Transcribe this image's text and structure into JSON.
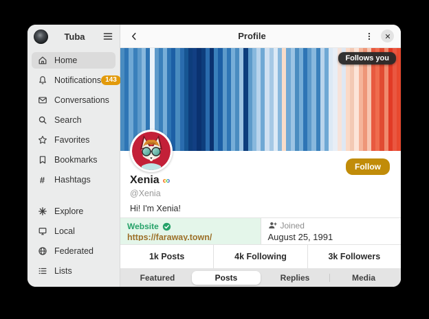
{
  "sidebar": {
    "title": "Tuba",
    "items": [
      {
        "label": "Home",
        "icon": "home-icon",
        "selected": true
      },
      {
        "label": "Notifications",
        "icon": "bell-icon",
        "badge": "143"
      },
      {
        "label": "Conversations",
        "icon": "envelope-icon"
      },
      {
        "label": "Search",
        "icon": "search-icon"
      },
      {
        "label": "Favorites",
        "icon": "star-icon"
      },
      {
        "label": "Bookmarks",
        "icon": "bookmark-icon"
      },
      {
        "label": "Hashtags",
        "icon": "hash-icon"
      },
      {
        "label": "Explore",
        "icon": "explore-icon"
      },
      {
        "label": "Local",
        "icon": "monitor-icon"
      },
      {
        "label": "Federated",
        "icon": "globe-icon"
      },
      {
        "label": "Lists",
        "icon": "list-icon"
      }
    ]
  },
  "header": {
    "title": "Profile"
  },
  "profile": {
    "follows_you_label": "Follows you",
    "follow_button_label": "Follow",
    "display_name": "Xenia",
    "name_emoji": "∞",
    "handle": "@Xenia",
    "bio": "Hi! I'm Xenia!",
    "fields": {
      "website_label": "Website",
      "website_value": "https://faraway.town/",
      "joined_label": "Joined",
      "joined_value": "August 25, 1991"
    },
    "stats": [
      {
        "label": "1k Posts"
      },
      {
        "label": "4k Following"
      },
      {
        "label": "3k Followers"
      }
    ],
    "tabs": [
      {
        "label": "Featured"
      },
      {
        "label": "Posts",
        "selected": true
      },
      {
        "label": "Replies"
      },
      {
        "label": "Media"
      }
    ]
  },
  "colors": {
    "accent_yellow": "#c18c09",
    "badge_orange": "#e29a0b",
    "verified_green": "#26a269",
    "link_color": "#9c7029",
    "sidebar_bg": "#ebecec",
    "selected_row": "#dbdbdb"
  },
  "banner_stripes": [
    "#4a8cc0",
    "#2e75b5",
    "#6fa8d4",
    "#3a80bb",
    "#5d9aca",
    "#88b8dd",
    "#2e75b5",
    "#eaf2f9",
    "#5d9aca",
    "#3a80bb",
    "#77aed8",
    "#2e75b5",
    "#1c5fa5",
    "#4a8cc0",
    "#2a6cae",
    "#175693",
    "#0d3d7c",
    "#123f83",
    "#0a3270",
    "#0d3d7c",
    "#2a6cae",
    "#0a3270",
    "#3a80bb",
    "#1c5fa5",
    "#5d9aca",
    "#2e75b5",
    "#77aed8",
    "#4a8cc0",
    "#9dc4e4",
    "#0d3d7c",
    "#5d9aca",
    "#88b8dd",
    "#b9d4ec",
    "#6fa8d4",
    "#cfe0f1",
    "#a5c8e5",
    "#dce9f5",
    "#88b8dd",
    "#f8dcc9",
    "#6fa8d4",
    "#9dc4e4",
    "#4a8cc0",
    "#77aed8",
    "#2e75b5",
    "#5d9aca",
    "#88b8dd",
    "#3a80bb",
    "#b9d4ec",
    "#6fa8d4",
    "#dce9f5",
    "#e8eef6",
    "#f6e3da",
    "#dfe8f3",
    "#fbd9c6",
    "#f3c9b4",
    "#fce4d8",
    "#f5b49a",
    "#ee9678",
    "#f7c5b0",
    "#e8593f",
    "#ef6c4e",
    "#e14b31",
    "#f08a6d",
    "#e23a25",
    "#ea5741",
    "#e8492f"
  ]
}
